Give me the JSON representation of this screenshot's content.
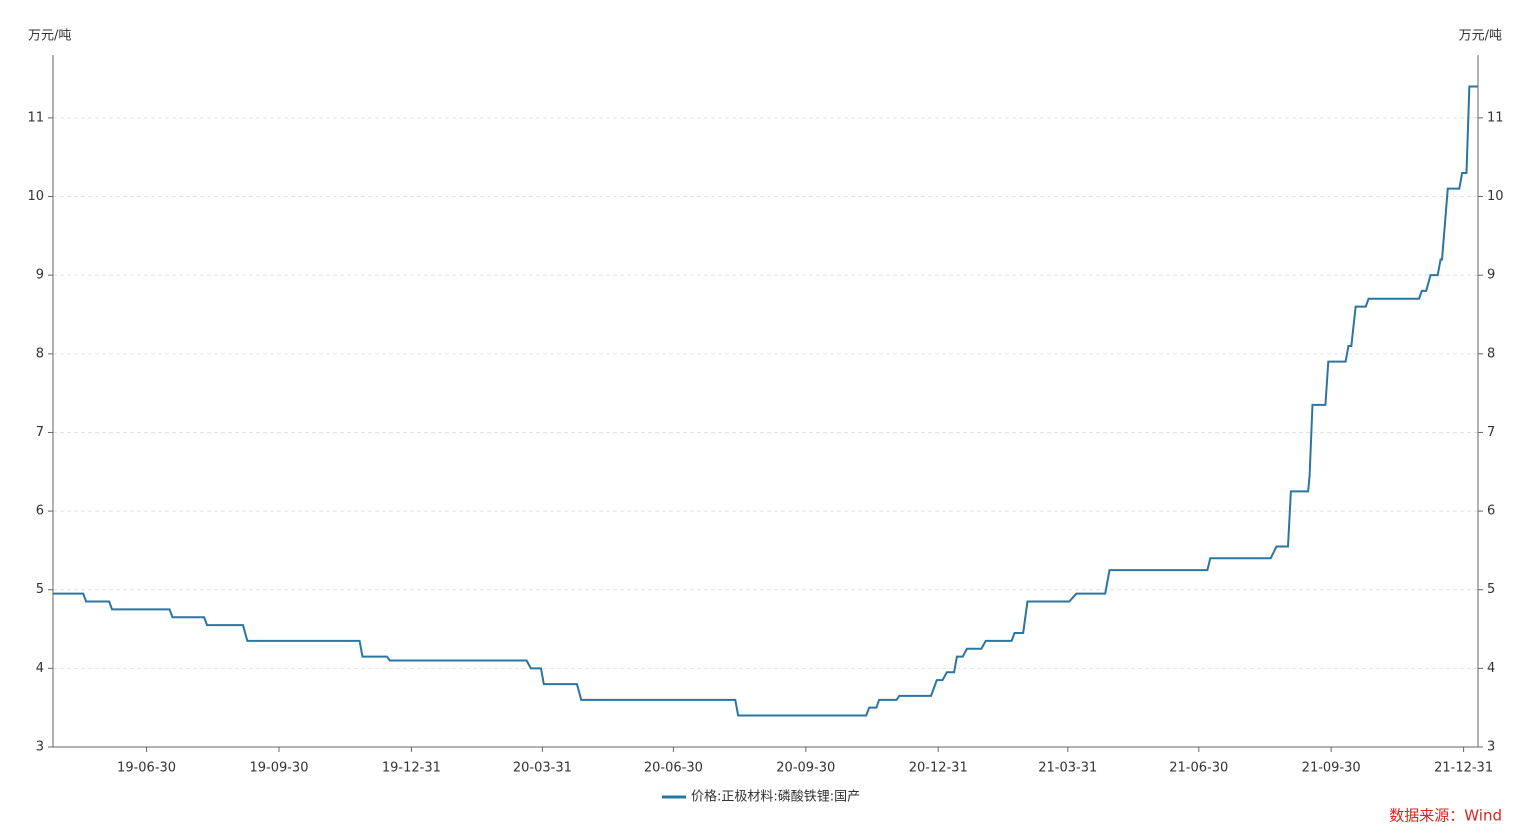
{
  "chart_data": {
    "type": "line",
    "y_label": "万元/吨",
    "y2_label": "万元/吨",
    "source": "数据来源：Wind",
    "grid": true,
    "x": [
      "19-04-26",
      "19-05-17",
      "19-05-19",
      "19-06-04",
      "19-06-06",
      "19-07-16",
      "19-07-18",
      "19-08-09",
      "19-08-11",
      "19-09-05",
      "19-09-08",
      "19-11-25",
      "19-11-27",
      "19-12-14",
      "19-12-16",
      "20-03-20",
      "20-03-23",
      "20-03-30",
      "20-04-01",
      "20-04-24",
      "20-04-27",
      "20-08-12",
      "20-08-14",
      "20-11-11",
      "20-11-13",
      "20-11-18",
      "20-11-20",
      "20-12-02",
      "20-12-04",
      "20-12-26",
      "20-12-30",
      "21-01-03",
      "21-01-06",
      "21-01-11",
      "21-01-13",
      "21-01-17",
      "21-01-20",
      "21-01-30",
      "21-02-02",
      "21-02-20",
      "21-02-22",
      "21-02-28",
      "21-03-03",
      "21-04-01",
      "21-04-06",
      "21-04-26",
      "21-04-27",
      "21-04-29",
      "21-07-06",
      "21-07-08",
      "21-08-19",
      "21-08-23",
      "21-08-31",
      "21-09-02",
      "21-09-14",
      "21-09-15",
      "21-09-17",
      "21-09-26",
      "21-09-28",
      "21-10-10",
      "21-10-12",
      "21-10-14",
      "21-10-17",
      "21-10-24",
      "21-10-26",
      "21-11-30",
      "21-12-02",
      "21-12-05",
      "21-12-08",
      "21-12-13",
      "21-12-15",
      "21-12-16",
      "21-12-20",
      "21-12-28",
      "21-12-30",
      "22-01-02",
      "22-01-04",
      "22-01-10"
    ],
    "series": [
      {
        "name": "价格:正极材料:磷酸铁锂:国产",
        "color": "#2a76a2",
        "values": [
          4.95,
          4.95,
          4.85,
          4.85,
          4.75,
          4.75,
          4.65,
          4.65,
          4.55,
          4.55,
          4.35,
          4.35,
          4.15,
          4.15,
          4.1,
          4.1,
          4.0,
          4.0,
          3.8,
          3.8,
          3.6,
          3.6,
          3.4,
          3.4,
          3.5,
          3.5,
          3.6,
          3.6,
          3.65,
          3.65,
          3.85,
          3.85,
          3.95,
          3.95,
          4.15,
          4.15,
          4.25,
          4.25,
          4.35,
          4.35,
          4.45,
          4.45,
          4.85,
          4.85,
          4.95,
          4.95,
          5.05,
          5.25,
          5.25,
          5.4,
          5.4,
          5.55,
          5.55,
          6.25,
          6.25,
          6.45,
          7.35,
          7.35,
          7.9,
          7.9,
          8.1,
          8.1,
          8.6,
          8.6,
          8.7,
          8.7,
          8.8,
          8.8,
          9.0,
          9.0,
          9.2,
          9.2,
          10.1,
          10.1,
          10.3,
          10.3,
          11.4,
          11.4
        ]
      }
    ],
    "xlim": [
      "19-04-26",
      "22-01-10"
    ],
    "xticks": [
      "19-06-30",
      "19-09-30",
      "19-12-31",
      "20-03-31",
      "20-06-30",
      "20-09-30",
      "20-12-31",
      "21-03-31",
      "21-06-30",
      "21-09-30",
      "21-12-31"
    ],
    "ylim": [
      3,
      11.8
    ],
    "yticks": [
      3,
      4,
      5,
      6,
      7,
      8,
      9,
      10,
      11
    ],
    "y2lim": [
      3,
      11.8
    ],
    "y2ticks": [
      3,
      4,
      5,
      6,
      7,
      8,
      9,
      10,
      11
    ]
  }
}
